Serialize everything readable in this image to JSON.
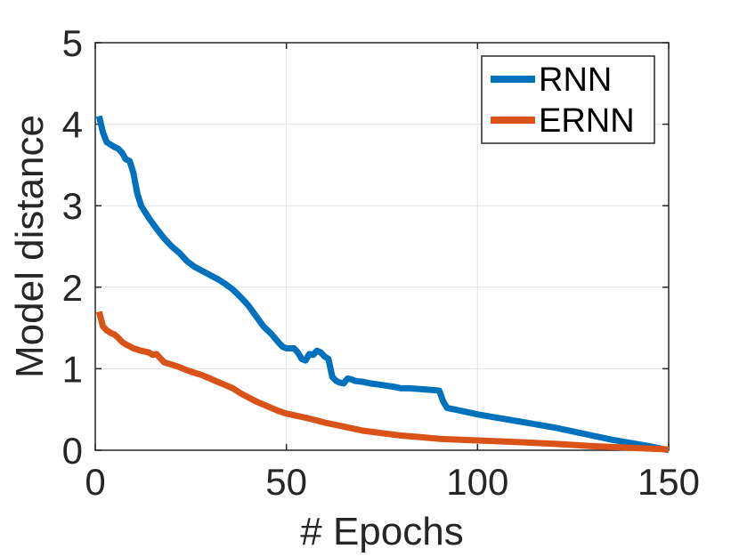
{
  "chart_data": {
    "type": "line",
    "xlabel": "# Epochs",
    "ylabel": "Model distance",
    "xlim": [
      0,
      150
    ],
    "ylim": [
      0,
      5
    ],
    "xticks": [
      0,
      50,
      100,
      150
    ],
    "yticks": [
      0,
      1,
      2,
      3,
      4,
      5
    ],
    "grid": true,
    "legend_position": "top-right",
    "series": [
      {
        "name": "RNN",
        "color": "#0072BD",
        "x": [
          1,
          2,
          3,
          4,
          5,
          6,
          7,
          8,
          9,
          10,
          11,
          12,
          14,
          16,
          18,
          20,
          22,
          24,
          26,
          28,
          30,
          32,
          34,
          36,
          38,
          40,
          42,
          44,
          46,
          48,
          49,
          50,
          52,
          53,
          54,
          55,
          56,
          57,
          58,
          59,
          60,
          61,
          62,
          63,
          64,
          65,
          66,
          67,
          68,
          70,
          72,
          75,
          78,
          80,
          82,
          85,
          88,
          90,
          91,
          92,
          95,
          100,
          105,
          110,
          115,
          120,
          125,
          130,
          135,
          140,
          145,
          150
        ],
        "values": [
          4.1,
          3.9,
          3.78,
          3.75,
          3.72,
          3.7,
          3.65,
          3.57,
          3.55,
          3.4,
          3.15,
          3.0,
          2.85,
          2.72,
          2.6,
          2.5,
          2.42,
          2.32,
          2.25,
          2.2,
          2.15,
          2.1,
          2.04,
          1.97,
          1.88,
          1.78,
          1.65,
          1.52,
          1.43,
          1.32,
          1.27,
          1.25,
          1.25,
          1.2,
          1.12,
          1.1,
          1.18,
          1.17,
          1.22,
          1.2,
          1.15,
          1.12,
          0.9,
          0.85,
          0.83,
          0.82,
          0.88,
          0.87,
          0.85,
          0.84,
          0.82,
          0.8,
          0.78,
          0.76,
          0.76,
          0.75,
          0.74,
          0.73,
          0.6,
          0.52,
          0.49,
          0.44,
          0.4,
          0.36,
          0.32,
          0.28,
          0.23,
          0.18,
          0.13,
          0.09,
          0.05,
          0.0
        ]
      },
      {
        "name": "ERNN",
        "color": "#D95319",
        "x": [
          1,
          2,
          3,
          4,
          5,
          6,
          7,
          8,
          10,
          12,
          14,
          15,
          16,
          17,
          18,
          20,
          22,
          24,
          26,
          28,
          30,
          32,
          34,
          36,
          38,
          40,
          42,
          44,
          46,
          48,
          50,
          55,
          60,
          65,
          70,
          75,
          80,
          85,
          90,
          95,
          100,
          110,
          120,
          130,
          140,
          150
        ],
        "values": [
          1.7,
          1.52,
          1.47,
          1.44,
          1.42,
          1.38,
          1.33,
          1.3,
          1.25,
          1.22,
          1.2,
          1.17,
          1.18,
          1.13,
          1.08,
          1.05,
          1.02,
          0.98,
          0.95,
          0.92,
          0.88,
          0.84,
          0.8,
          0.76,
          0.7,
          0.65,
          0.6,
          0.56,
          0.52,
          0.48,
          0.45,
          0.4,
          0.34,
          0.29,
          0.24,
          0.21,
          0.18,
          0.16,
          0.14,
          0.13,
          0.12,
          0.1,
          0.08,
          0.05,
          0.03,
          0.01
        ]
      }
    ]
  }
}
